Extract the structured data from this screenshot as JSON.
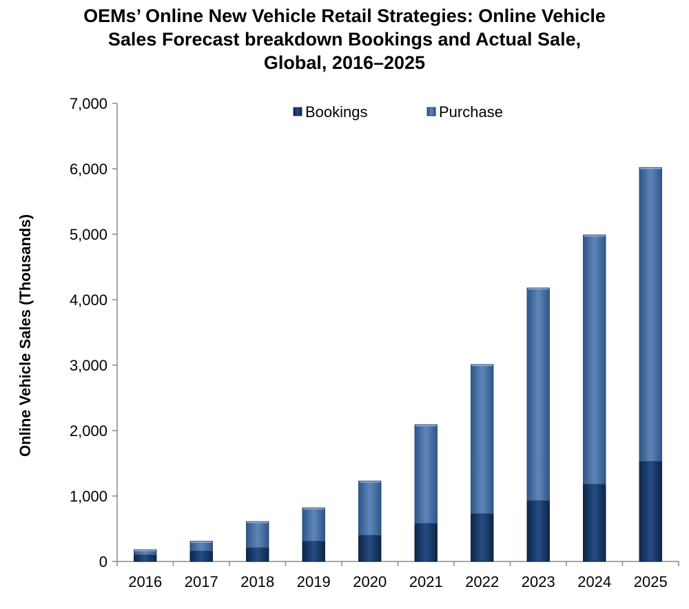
{
  "chart_data": {
    "type": "bar",
    "stacked": true,
    "title_lines": [
      "OEMs’ Online New Vehicle Retail Strategies: Online Vehicle",
      "Sales Forecast breakdown Bookings and Actual Sale,",
      "Global, 2016–2025"
    ],
    "xlabel": "",
    "ylabel": "Online Vehicle Sales (Thousands)",
    "ylim": [
      0,
      7000
    ],
    "yticks": [
      "0",
      "1,000",
      "2,000",
      "3,000",
      "4,000",
      "5,000",
      "6,000",
      "7,000"
    ],
    "categories": [
      "2016",
      "2017",
      "2018",
      "2019",
      "2020",
      "2021",
      "2022",
      "2023",
      "2024",
      "2025"
    ],
    "series": [
      {
        "name": "Bookings",
        "values": [
          100,
          160,
          210,
          310,
          400,
          580,
          730,
          930,
          1180,
          1530
        ]
      },
      {
        "name": "Purchase",
        "values": [
          80,
          150,
          400,
          510,
          830,
          1510,
          2280,
          3250,
          3810,
          4490
        ]
      }
    ],
    "legend_position": "top",
    "colors": {
      "Bookings": "#1b3a6b",
      "Purchase": "#4a73a5",
      "axis": "#888888"
    }
  }
}
